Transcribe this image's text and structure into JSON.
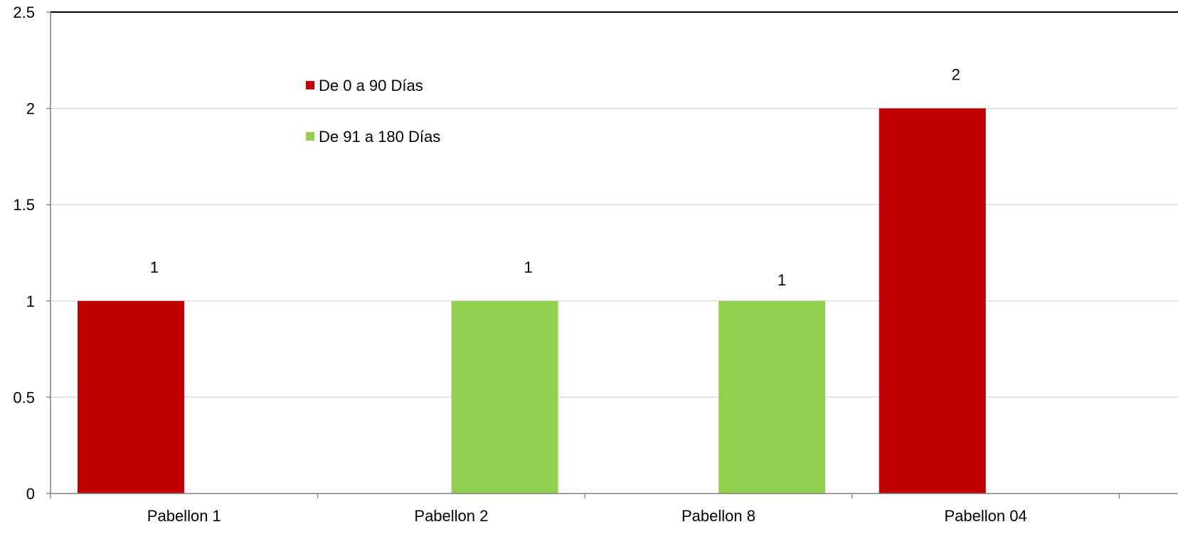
{
  "chart_data": {
    "type": "bar",
    "categories": [
      "Pabellon 1",
      "Pabellon 2",
      "Pabellon 8",
      "Pabellon 04"
    ],
    "series": [
      {
        "name": "De 0 a 90 Días",
        "color": "#C00000",
        "values": [
          1,
          null,
          null,
          2
        ]
      },
      {
        "name": "De 91 a 180 Días",
        "color": "#92D050",
        "values": [
          null,
          1,
          1,
          null
        ]
      }
    ],
    "data_labels": [
      "1",
      "1",
      "1",
      "2"
    ],
    "ylim": [
      0,
      2.5
    ],
    "yticks": [
      "0",
      "0.5",
      "1",
      "1.5",
      "2",
      "2.5"
    ],
    "grid": true,
    "legend_position": "top-left-inside",
    "title": "",
    "xlabel": "",
    "ylabel": ""
  }
}
